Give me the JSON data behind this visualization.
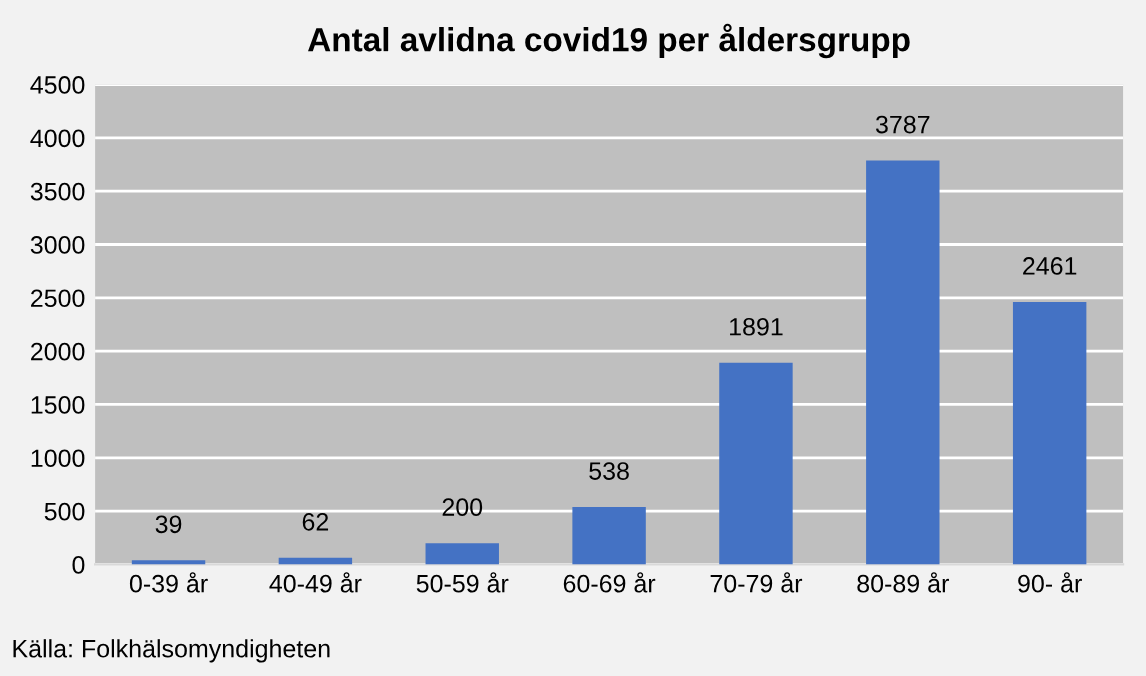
{
  "chart_data": {
    "type": "bar",
    "title": "Antal avlidna covid19 per åldersgrupp",
    "categories": [
      "0-39 år",
      "40-49 år",
      "50-59 år",
      "60-69 år",
      "70-79 år",
      "80-89 år",
      "90- år"
    ],
    "values": [
      39,
      62,
      200,
      538,
      1891,
      3787,
      2461
    ],
    "color": "#4472c4",
    "ylim": [
      0,
      4500
    ],
    "yticks": [
      0,
      500,
      1000,
      1500,
      2000,
      2500,
      3000,
      3500,
      4000,
      4500
    ],
    "grid": "y",
    "data_labels": true,
    "annotations": [
      "Källa: Folkhälsomyndigheten"
    ]
  }
}
